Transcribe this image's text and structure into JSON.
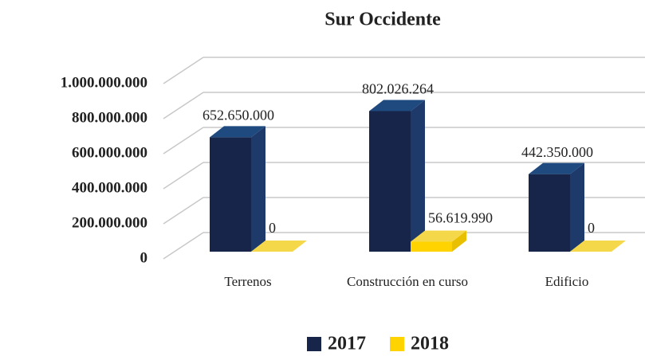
{
  "chart_data": {
    "type": "bar3d",
    "title": "Sur Occidente",
    "categories": [
      "Terrenos",
      "Construcción en curso",
      "Edificio"
    ],
    "series": [
      {
        "name": "2017",
        "color": "#17254a",
        "values": [
          652650000,
          802026264,
          442350000
        ],
        "value_labels": [
          "652.650.000",
          "802.026.264",
          "442.350.000"
        ]
      },
      {
        "name": "2018",
        "color": "#ffd300",
        "values": [
          0,
          56619990,
          0
        ],
        "value_labels": [
          "0",
          "56.619.990",
          "0"
        ]
      }
    ],
    "ylim": [
      0,
      1000000000
    ],
    "yticks": [
      0,
      {
        "value": 200000000,
        "label": "200.000.000"
      },
      {
        "value": 400000000,
        "label": "400.000.000"
      },
      {
        "value": 600000000,
        "label": "600.000.000"
      },
      {
        "value": 800000000,
        "label": "800.000.000"
      },
      {
        "value": 1000000000,
        "label": "1.000.000.000"
      }
    ],
    "grid": true,
    "legend": "bottom"
  }
}
